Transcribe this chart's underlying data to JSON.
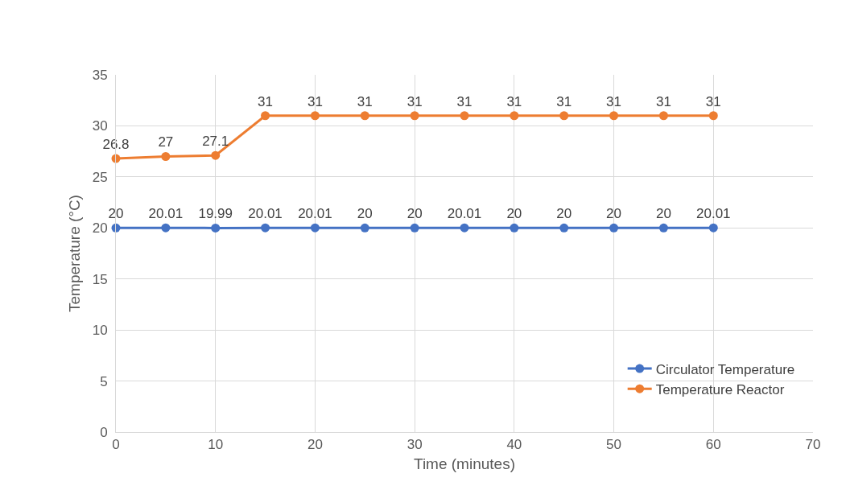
{
  "chart_data": {
    "type": "line",
    "xlabel": "Time (minutes)",
    "ylabel": "Temperature (°C)",
    "x": [
      0,
      5,
      10,
      15,
      20,
      25,
      30,
      35,
      40,
      45,
      50,
      55,
      60
    ],
    "series": [
      {
        "name": "Circulator Temperature",
        "color": "#4472c4",
        "values": [
          20,
          20.01,
          19.99,
          20.01,
          20.01,
          20,
          20,
          20.01,
          20,
          20,
          20,
          20,
          20.01
        ]
      },
      {
        "name": "Temperature Reactor",
        "color": "#ed7d31",
        "values": [
          26.8,
          27,
          27.1,
          31,
          31,
          31,
          31,
          31,
          31,
          31,
          31,
          31,
          31
        ]
      }
    ],
    "xlim": [
      0,
      70
    ],
    "xticks": [
      0,
      10,
      20,
      30,
      40,
      50,
      60,
      70
    ],
    "ylim": [
      0,
      35
    ],
    "yticks": [
      0,
      5,
      10,
      15,
      20,
      25,
      30,
      35
    ],
    "grid": true,
    "legend": "bottom right",
    "marker": "circle",
    "line_style": "solid",
    "data_labels": true
  }
}
